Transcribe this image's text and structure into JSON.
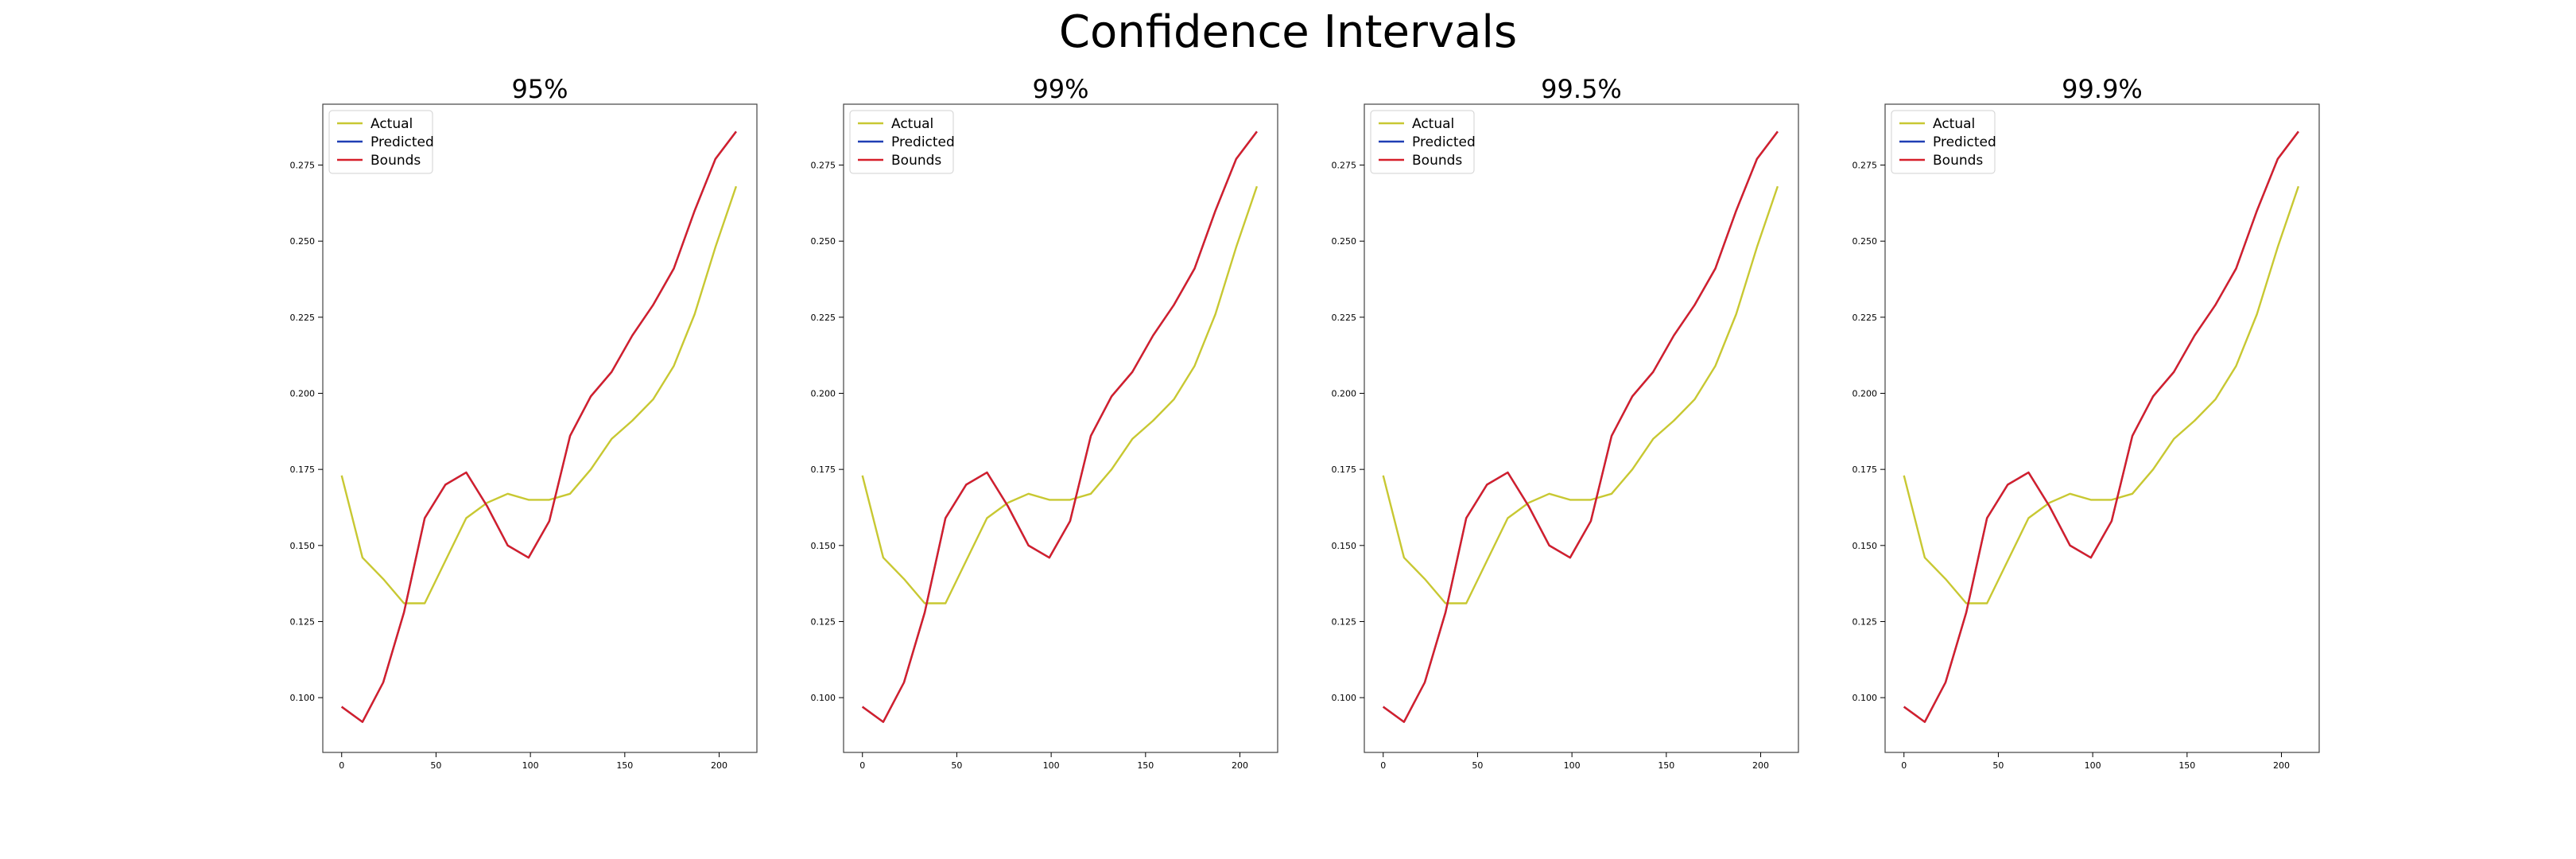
{
  "suptitle": "Confidence Intervals",
  "colors": {
    "actual": "#c8c832",
    "predicted": "#1f3fb4",
    "bounds": "#d61f2a",
    "axes": "#444444"
  },
  "chart_data": [
    {
      "type": "line",
      "title": "95%",
      "xlim": [
        -10,
        220
      ],
      "ylim": [
        0.082,
        0.295
      ],
      "xticks": [
        0,
        50,
        100,
        150,
        200
      ],
      "yticks": [
        0.1,
        0.125,
        0.15,
        0.175,
        0.2,
        0.225,
        0.25,
        0.275
      ],
      "legend_position": "upper-left",
      "x": [
        0,
        11,
        22,
        33,
        44,
        55,
        66,
        77,
        88,
        99,
        110,
        121,
        132,
        143,
        154,
        165,
        176,
        187,
        198,
        209
      ],
      "series": [
        {
          "name": "Actual",
          "color_key": "actual",
          "values": [
            0.173,
            0.146,
            0.139,
            0.131,
            0.131,
            0.145,
            0.159,
            0.164,
            0.167,
            0.165,
            0.165,
            0.167,
            0.175,
            0.185,
            0.191,
            0.198,
            0.209,
            0.226,
            0.248,
            0.268
          ]
        },
        {
          "name": "Predicted",
          "color_key": "predicted",
          "values": [
            0.097,
            0.092,
            0.105,
            0.128,
            0.159,
            0.17,
            0.174,
            0.163,
            0.15,
            0.146,
            0.158,
            0.186,
            0.199,
            0.207,
            0.219,
            0.229,
            0.241,
            0.26,
            0.277,
            0.286
          ]
        },
        {
          "name": "Bounds",
          "color_key": "bounds",
          "values": [
            0.097,
            0.092,
            0.105,
            0.128,
            0.159,
            0.17,
            0.174,
            0.163,
            0.15,
            0.146,
            0.158,
            0.186,
            0.199,
            0.207,
            0.219,
            0.229,
            0.241,
            0.26,
            0.277,
            0.286
          ]
        }
      ]
    },
    {
      "type": "line",
      "title": "99%",
      "xlim": [
        -10,
        220
      ],
      "ylim": [
        0.082,
        0.295
      ],
      "xticks": [
        0,
        50,
        100,
        150,
        200
      ],
      "yticks": [
        0.1,
        0.125,
        0.15,
        0.175,
        0.2,
        0.225,
        0.25,
        0.275
      ],
      "legend_position": "upper-left",
      "x": [
        0,
        11,
        22,
        33,
        44,
        55,
        66,
        77,
        88,
        99,
        110,
        121,
        132,
        143,
        154,
        165,
        176,
        187,
        198,
        209
      ],
      "series": [
        {
          "name": "Actual",
          "color_key": "actual",
          "values": [
            0.173,
            0.146,
            0.139,
            0.131,
            0.131,
            0.145,
            0.159,
            0.164,
            0.167,
            0.165,
            0.165,
            0.167,
            0.175,
            0.185,
            0.191,
            0.198,
            0.209,
            0.226,
            0.248,
            0.268
          ]
        },
        {
          "name": "Predicted",
          "color_key": "predicted",
          "values": [
            0.097,
            0.092,
            0.105,
            0.128,
            0.159,
            0.17,
            0.174,
            0.163,
            0.15,
            0.146,
            0.158,
            0.186,
            0.199,
            0.207,
            0.219,
            0.229,
            0.241,
            0.26,
            0.277,
            0.286
          ]
        },
        {
          "name": "Bounds",
          "color_key": "bounds",
          "values": [
            0.097,
            0.092,
            0.105,
            0.128,
            0.159,
            0.17,
            0.174,
            0.163,
            0.15,
            0.146,
            0.158,
            0.186,
            0.199,
            0.207,
            0.219,
            0.229,
            0.241,
            0.26,
            0.277,
            0.286
          ]
        }
      ]
    },
    {
      "type": "line",
      "title": "99.5%",
      "xlim": [
        -10,
        220
      ],
      "ylim": [
        0.082,
        0.295
      ],
      "xticks": [
        0,
        50,
        100,
        150,
        200
      ],
      "yticks": [
        0.1,
        0.125,
        0.15,
        0.175,
        0.2,
        0.225,
        0.25,
        0.275
      ],
      "legend_position": "upper-left",
      "x": [
        0,
        11,
        22,
        33,
        44,
        55,
        66,
        77,
        88,
        99,
        110,
        121,
        132,
        143,
        154,
        165,
        176,
        187,
        198,
        209
      ],
      "series": [
        {
          "name": "Actual",
          "color_key": "actual",
          "values": [
            0.173,
            0.146,
            0.139,
            0.131,
            0.131,
            0.145,
            0.159,
            0.164,
            0.167,
            0.165,
            0.165,
            0.167,
            0.175,
            0.185,
            0.191,
            0.198,
            0.209,
            0.226,
            0.248,
            0.268
          ]
        },
        {
          "name": "Predicted",
          "color_key": "predicted",
          "values": [
            0.097,
            0.092,
            0.105,
            0.128,
            0.159,
            0.17,
            0.174,
            0.163,
            0.15,
            0.146,
            0.158,
            0.186,
            0.199,
            0.207,
            0.219,
            0.229,
            0.241,
            0.26,
            0.277,
            0.286
          ]
        },
        {
          "name": "Bounds",
          "color_key": "bounds",
          "values": [
            0.097,
            0.092,
            0.105,
            0.128,
            0.159,
            0.17,
            0.174,
            0.163,
            0.15,
            0.146,
            0.158,
            0.186,
            0.199,
            0.207,
            0.219,
            0.229,
            0.241,
            0.26,
            0.277,
            0.286
          ]
        }
      ]
    },
    {
      "type": "line",
      "title": "99.9%",
      "xlim": [
        -10,
        220
      ],
      "ylim": [
        0.082,
        0.295
      ],
      "xticks": [
        0,
        50,
        100,
        150,
        200
      ],
      "yticks": [
        0.1,
        0.125,
        0.15,
        0.175,
        0.2,
        0.225,
        0.25,
        0.275
      ],
      "legend_position": "upper-left",
      "x": [
        0,
        11,
        22,
        33,
        44,
        55,
        66,
        77,
        88,
        99,
        110,
        121,
        132,
        143,
        154,
        165,
        176,
        187,
        198,
        209
      ],
      "series": [
        {
          "name": "Actual",
          "color_key": "actual",
          "values": [
            0.173,
            0.146,
            0.139,
            0.131,
            0.131,
            0.145,
            0.159,
            0.164,
            0.167,
            0.165,
            0.165,
            0.167,
            0.175,
            0.185,
            0.191,
            0.198,
            0.209,
            0.226,
            0.248,
            0.268
          ]
        },
        {
          "name": "Predicted",
          "color_key": "predicted",
          "values": [
            0.097,
            0.092,
            0.105,
            0.128,
            0.159,
            0.17,
            0.174,
            0.163,
            0.15,
            0.146,
            0.158,
            0.186,
            0.199,
            0.207,
            0.219,
            0.229,
            0.241,
            0.26,
            0.277,
            0.286
          ]
        },
        {
          "name": "Bounds",
          "color_key": "bounds",
          "values": [
            0.097,
            0.092,
            0.105,
            0.128,
            0.159,
            0.17,
            0.174,
            0.163,
            0.15,
            0.146,
            0.158,
            0.186,
            0.199,
            0.207,
            0.219,
            0.229,
            0.241,
            0.26,
            0.277,
            0.286
          ]
        }
      ]
    }
  ]
}
